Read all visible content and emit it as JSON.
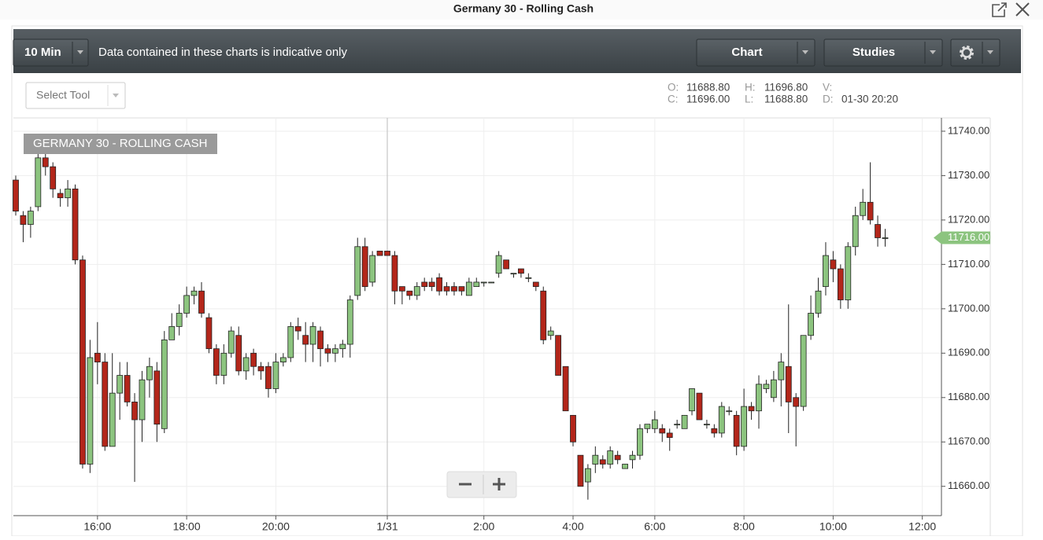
{
  "window": {
    "title": "Germany 30 - Rolling Cash"
  },
  "toolbar": {
    "interval": "10 Min",
    "notice": "Data contained in these charts is indicative only",
    "chart_button": "Chart",
    "studies_button": "Studies",
    "select_tool": "Select Tool"
  },
  "readout": [
    [
      {
        "label": "O:",
        "value": "11688.80"
      },
      {
        "label": "H:",
        "value": "11696.80"
      },
      {
        "label": "V:"
      }
    ],
    [
      {
        "label": "C:",
        "value": "11696.00"
      },
      {
        "label": "L:",
        "value": "11688.80"
      },
      {
        "label": "D:",
        "value": "01-30 20:20"
      }
    ]
  ],
  "chart_data": {
    "type": "candlestick",
    "label": "GERMANY 30 - ROLLING CASH",
    "up_color": "#8cc47f",
    "down_color": "#b3261a",
    "grid": true,
    "categories": [
      null,
      null,
      null,
      null,
      null,
      null,
      null,
      null,
      null,
      null,
      null,
      "16:00",
      null,
      null,
      null,
      null,
      null,
      null,
      null,
      null,
      null,
      null,
      null,
      "18:00",
      null,
      null,
      null,
      null,
      null,
      null,
      null,
      null,
      null,
      null,
      null,
      "20:00",
      null,
      null,
      null,
      null,
      null,
      null,
      null,
      null,
      null,
      null,
      null,
      null,
      null,
      null,
      "1/31",
      null,
      null,
      null,
      null,
      null,
      null,
      null,
      null,
      null,
      null,
      null,
      null,
      "2:00",
      null,
      null,
      null,
      null,
      null,
      null,
      null,
      null,
      null,
      null,
      null,
      "4:00",
      null,
      null,
      null,
      null,
      null,
      null,
      null,
      null,
      null,
      null,
      "6:00",
      null,
      null,
      null,
      null,
      null,
      null,
      null,
      null,
      null,
      null,
      null,
      "8:00",
      null,
      null,
      null,
      null,
      null,
      null,
      null,
      null,
      null,
      null,
      null,
      "10:00",
      null,
      null,
      null,
      null,
      null,
      null,
      null,
      null,
      null,
      null,
      null,
      "12:00"
    ],
    "open": [
      11729,
      11721,
      11719,
      11723,
      11734,
      11732,
      11726,
      11725,
      11727,
      11711,
      11665,
      11690,
      11688,
      11669,
      11681,
      11685,
      11679,
      11675,
      11684,
      11686,
      11673,
      11693,
      11696,
      11699,
      11703,
      11704,
      11698,
      11691,
      11685,
      11690,
      11694,
      11686,
      11690,
      11687,
      11687,
      11682,
      11688,
      11689,
      11696,
      11694,
      11692,
      11695,
      11691,
      11690,
      11691,
      11692,
      11703,
      11714,
      11706,
      11713,
      11713,
      11712,
      11705,
      11704,
      11703,
      11706,
      11706,
      11707,
      11705,
      11705,
      11705,
      11703,
      11705,
      11706,
      11706,
      11708,
      11711,
      11708,
      11709,
      11707,
      11706,
      11704,
      11694,
      11694,
      11687,
      11676,
      11667,
      11661,
      11665,
      11666,
      11665,
      11667,
      11664,
      11666,
      11667,
      11673,
      11673,
      11673,
      11672,
      11674,
      11673,
      11677,
      11681,
      11674,
      11673,
      11672,
      11677,
      11676,
      11669,
      11678,
      11677,
      11682,
      11680,
      11684,
      11687,
      11680,
      11678,
      11694,
      11699,
      11705,
      11711,
      11709,
      11702,
      11714,
      11721,
      11724,
      11719,
      11716,
      null,
      null,
      null,
      null,
      null
    ],
    "high": [
      11730,
      11722,
      11723,
      11735,
      11737,
      11733,
      11727,
      11729,
      11728,
      11712,
      11693,
      11697,
      11690,
      11690,
      11688,
      11688,
      11681,
      11686,
      11689,
      11688,
      11695,
      11699,
      11701,
      11705,
      11705,
      11706,
      11699,
      11692,
      11692,
      11696,
      11696,
      11690,
      11691,
      11688,
      11688,
      11690,
      11690,
      11697,
      11698,
      11697,
      11697,
      11696,
      11692,
      11692,
      11693,
      11703,
      11716,
      11716,
      11713,
      11713,
      11713,
      11713,
      11705,
      11704,
      11706,
      11707,
      11707,
      11708,
      11706,
      11706,
      11705,
      11707,
      11707,
      11706,
      11706,
      11713,
      11711,
      11708,
      11709,
      11708,
      11706,
      11705,
      11696,
      11694,
      11687,
      11676,
      11667,
      11665,
      11669,
      11667,
      11669,
      11668,
      11665,
      11668,
      11674,
      11674,
      11677,
      11674,
      11673,
      11675,
      11676,
      11682,
      11681,
      11675,
      11674,
      11679,
      11678,
      11677,
      11682,
      11679,
      11685,
      11684,
      11686,
      11690,
      11701,
      11681,
      11694,
      11703,
      11707,
      11715,
      11713,
      11710,
      11715,
      11723,
      11727,
      11733,
      11721,
      11718,
      null,
      null,
      null,
      null,
      null
    ],
    "low": [
      11721,
      11715,
      11716,
      11722,
      11730,
      11725,
      11723,
      11723,
      11710,
      11664,
      11663,
      11683,
      11668,
      11669,
      11675,
      11678,
      11661,
      11670,
      11680,
      11670,
      11672,
      11693,
      11694,
      11698,
      11701,
      11698,
      11690,
      11683,
      11683,
      11689,
      11685,
      11684,
      11685,
      11684,
      11680,
      11681,
      11687,
      11688,
      11693,
      11688,
      11688,
      11687,
      11688,
      11688,
      11689,
      11689,
      11702,
      11704,
      11705,
      11712,
      11712,
      11701,
      11701,
      11702,
      11702,
      11704,
      11704,
      11703,
      11703,
      11703,
      11703,
      11703,
      11705,
      11705,
      11706,
      11707,
      11709,
      11707,
      11707,
      11706,
      11704,
      11692,
      11693,
      11685,
      11677,
      11669,
      11660,
      11657,
      11663,
      11664,
      11664,
      11665,
      11664,
      11664,
      11666,
      11672,
      11672,
      11670,
      11668,
      11673,
      11673,
      11676,
      11675,
      11673,
      11671,
      11671,
      11676,
      11667,
      11668,
      11675,
      11673,
      11681,
      11679,
      11678,
      11672,
      11669,
      11677,
      11693,
      11698,
      11703,
      11706,
      11700,
      11700,
      11712,
      11720,
      11719,
      11714,
      11714,
      null,
      null,
      null,
      null,
      null
    ],
    "close": [
      11722,
      11719,
      11722,
      11734,
      11732,
      11727,
      11725,
      11727,
      11711,
      11665,
      11689,
      11688,
      11669,
      11681,
      11685,
      11679,
      11675,
      11684,
      11687,
      11674,
      11693,
      11696,
      11699,
      11703,
      11704,
      11699,
      11691,
      11685,
      11690,
      11695,
      11686,
      11689,
      11687,
      11686,
      11682,
      11688,
      11689,
      11696,
      11695,
      11692,
      11696,
      11691,
      11690,
      11691,
      11692,
      11702,
      11714,
      11705,
      11712,
      11712,
      11712,
      11704,
      11704,
      11703,
      11705,
      11705,
      11705,
      11704,
      11704,
      11704,
      11704,
      11706,
      11706,
      11706,
      11706,
      11712,
      11709,
      11708,
      11708,
      11707,
      11705,
      11693,
      11695,
      11685,
      11677,
      11670,
      11660,
      11664,
      11667,
      11665,
      11668,
      11666,
      11665,
      11667,
      11673,
      11674,
      11675,
      11672,
      11671,
      11674,
      11676,
      11682,
      11675,
      11674,
      11672,
      11678,
      11677,
      11669,
      11678,
      11677,
      11683,
      11683,
      11684,
      11688,
      11679,
      11678,
      11694,
      11699,
      11704,
      11712,
      11709,
      11702,
      11714,
      11721,
      11724,
      11720,
      11716,
      11716,
      null,
      null,
      null,
      null,
      null
    ],
    "last_price": {
      "value": 11716,
      "label": "11716.00",
      "color": "#8cc47f"
    },
    "ylim": [
      11653.4,
      11743
    ],
    "yticks": [
      {
        "value": 11660,
        "label": "11660.00"
      },
      {
        "value": 11670,
        "label": "11670.00"
      },
      {
        "value": 11680,
        "label": "11680.00"
      },
      {
        "value": 11690,
        "label": "11690.00"
      },
      {
        "value": 11700,
        "label": "11700.00"
      },
      {
        "value": 11710,
        "label": "11710.00"
      },
      {
        "value": 11720,
        "label": "11720.00"
      },
      {
        "value": 11730,
        "label": "11730.00"
      },
      {
        "value": 11740,
        "label": "11740.00"
      }
    ]
  }
}
